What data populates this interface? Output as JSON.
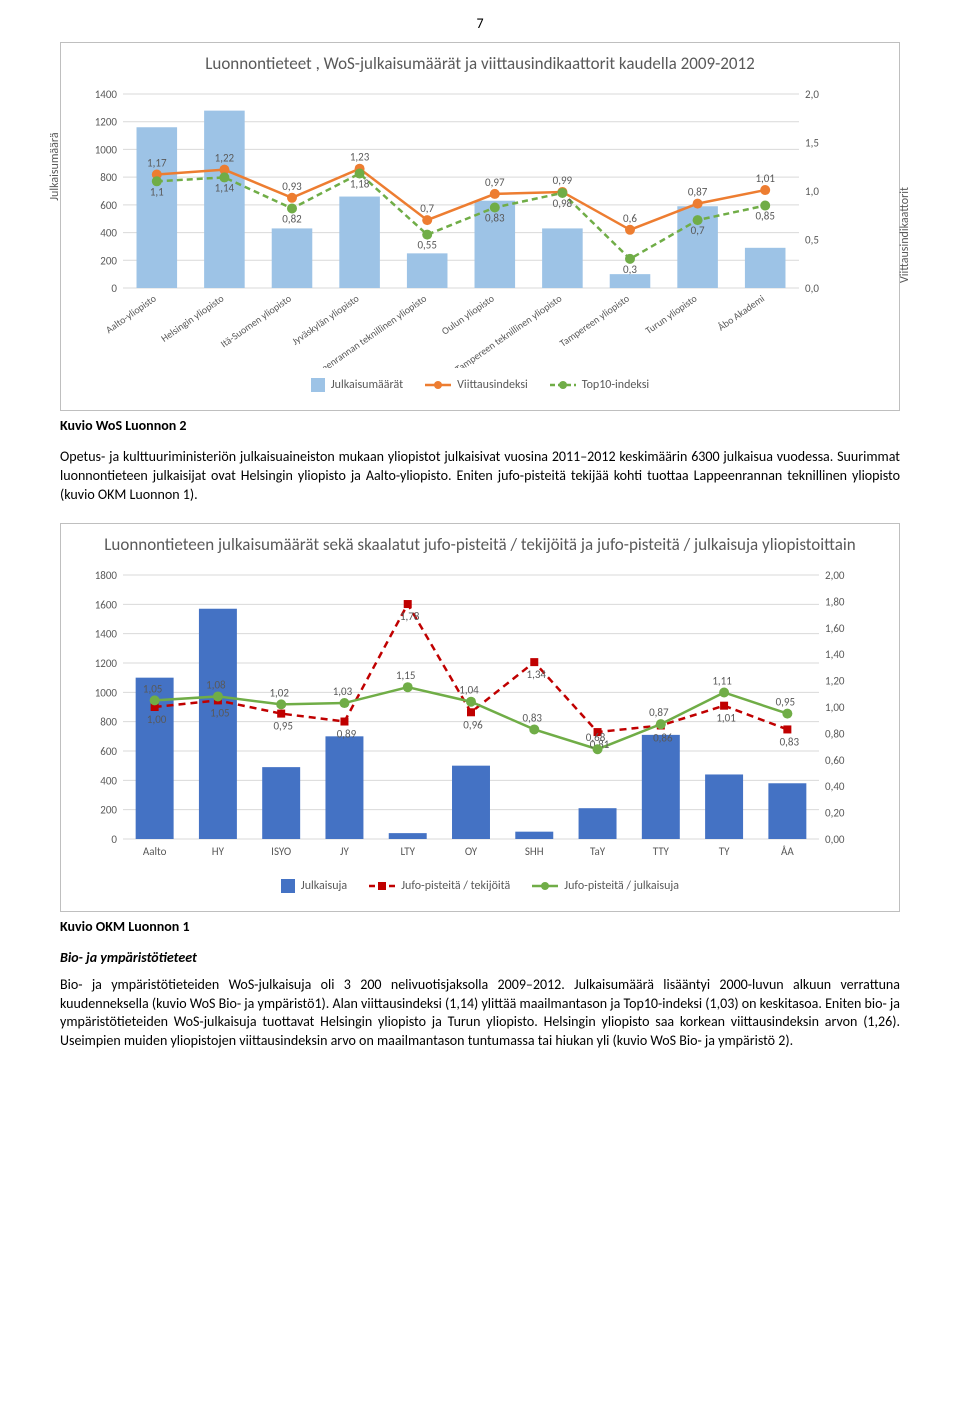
{
  "page_number": "7",
  "chart1": {
    "type": "bar-line-combo",
    "title": "Luonnontieteet , WoS-julkaisumäärät ja viittausindikaattorit kaudella 2009-2012",
    "y1_label": "Julkaisumäärä",
    "y2_label": "Viittausindikaattorit",
    "y1_lim": [
      0,
      1400
    ],
    "y1_step": 200,
    "y2_lim": [
      0.0,
      2.0
    ],
    "y2_step": 0.5,
    "bar_color": "#9dc3e6",
    "line1_color": "#ed7d31",
    "line2_color": "#70ad47",
    "line_width": 2.5,
    "marker_size": 5,
    "background_color": "#ffffff",
    "grid_color": "#d9d9d9",
    "categories": [
      "Aalto-yliopisto",
      "Helsingin yliopisto",
      "Itä-Suomen yliopisto",
      "Jyväskylän yliopisto",
      "Lappeenrannan teknillinen yliopisto",
      "Oulun yliopisto",
      "Tampereen teknillinen yliopisto",
      "Tampereen yliopisto",
      "Turun yliopisto",
      "Åbo Akademi"
    ],
    "bars": [
      1160,
      1280,
      430,
      660,
      250,
      630,
      430,
      100,
      590,
      290
    ],
    "line1": [
      1.17,
      1.22,
      0.93,
      1.23,
      0.7,
      0.97,
      0.99,
      0.6,
      0.87,
      1.01
    ],
    "line2": [
      1.1,
      1.14,
      0.82,
      1.18,
      0.55,
      0.83,
      0.98,
      0.3,
      0.7,
      0.85
    ],
    "line1_labels": [
      "1,17",
      "1,22",
      "0,93",
      "1,23",
      "0,7",
      "0,97",
      "0,99",
      "0,6",
      "0,87",
      "1,01"
    ],
    "line2_labels": [
      "1,1",
      "1,14",
      "0,82",
      "1,18",
      "0,55",
      "0,83",
      "0,98",
      "0,3",
      "0,7",
      "0,85"
    ],
    "legend": [
      "Julkaisumäärät",
      "Viittausindeksi",
      "Top10-indeksi"
    ]
  },
  "caption1": "Kuvio WoS Luonnon 2",
  "para1": "Opetus- ja kulttuuriministeriön julkaisuaineiston mukaan yliopistot julkaisivat vuosina 2011–2012 keskimäärin 6300 julkaisua vuodessa. Suurimmat luonnontieteen julkaisijat ovat Helsingin yliopisto ja Aalto-yliopisto. Eniten jufo-pisteitä tekijää kohti tuottaa Lappeenrannan teknillinen yliopisto (kuvio OKM Luonnon 1).",
  "chart2": {
    "type": "bar-line-combo",
    "title": "Luonnontieteen julkaisumäärät sekä skaalatut jufo-pisteitä / tekijöitä ja jufo-pisteitä / julkaisuja yliopistoittain",
    "y1_lim": [
      0,
      1800
    ],
    "y1_step": 200,
    "y2_lim": [
      0.0,
      2.0
    ],
    "y2_step": 0.2,
    "bar_color": "#4472c4",
    "line1_color": "#c00000",
    "line2_color": "#70ad47",
    "line_width": 2.5,
    "marker_size": 5,
    "grid_color": "#d9d9d9",
    "categories": [
      "Aalto",
      "HY",
      "ISYO",
      "JY",
      "LTY",
      "OY",
      "SHH",
      "TaY",
      "TTY",
      "TY",
      "ÅA"
    ],
    "bars": [
      1100,
      1570,
      490,
      700,
      40,
      500,
      50,
      210,
      710,
      440,
      380
    ],
    "line1": [
      1.0,
      1.05,
      0.95,
      0.89,
      1.78,
      0.96,
      1.34,
      0.81,
      0.86,
      1.01,
      0.83
    ],
    "line2": [
      1.05,
      1.08,
      1.02,
      1.03,
      1.15,
      1.04,
      0.83,
      0.68,
      0.87,
      1.11,
      0.95
    ],
    "line1_labels": [
      "1,00",
      "1,05",
      "0,95",
      "0,89",
      "1,78",
      "0,96",
      "1,34",
      "0,81",
      "0,86",
      "1,01",
      "0,83"
    ],
    "line2_labels": [
      "1,05",
      "1,08",
      "1,02",
      "1,03",
      "1,15",
      "1,04",
      "0,83",
      "0,68",
      "0,87",
      "1,11",
      "0,95"
    ],
    "legend": [
      "Julkaisuja",
      "Jufo-pisteitä / tekijöitä",
      "Jufo-pisteitä / julkaisuja"
    ]
  },
  "caption2": "Kuvio OKM Luonnon 1",
  "subhead": "Bio- ja ympäristötieteet",
  "para2": "Bio- ja ympäristötieteiden WoS-julkaisuja oli 3 200 nelivuotisjaksolla 2009–2012. Julkaisumäärä lisääntyi 2000-luvun alkuun verrattuna kuudenneksella (kuvio WoS Bio- ja ympäristö1). Alan viittausindeksi (1,14) ylittää maailmantason ja Top10-indeksi (1,03) on keskitasoa. Eniten bio- ja ympäristötieteiden WoS-julkaisuja tuottavat Helsingin yliopisto ja Turun yliopisto. Helsingin yliopisto saa korkean viittausindeksin arvon (1,26). Useimpien muiden yliopistojen viittausindeksin arvo on maailmantason tuntumassa tai hiukan yli (kuvio WoS Bio- ja ympäristö 2)."
}
